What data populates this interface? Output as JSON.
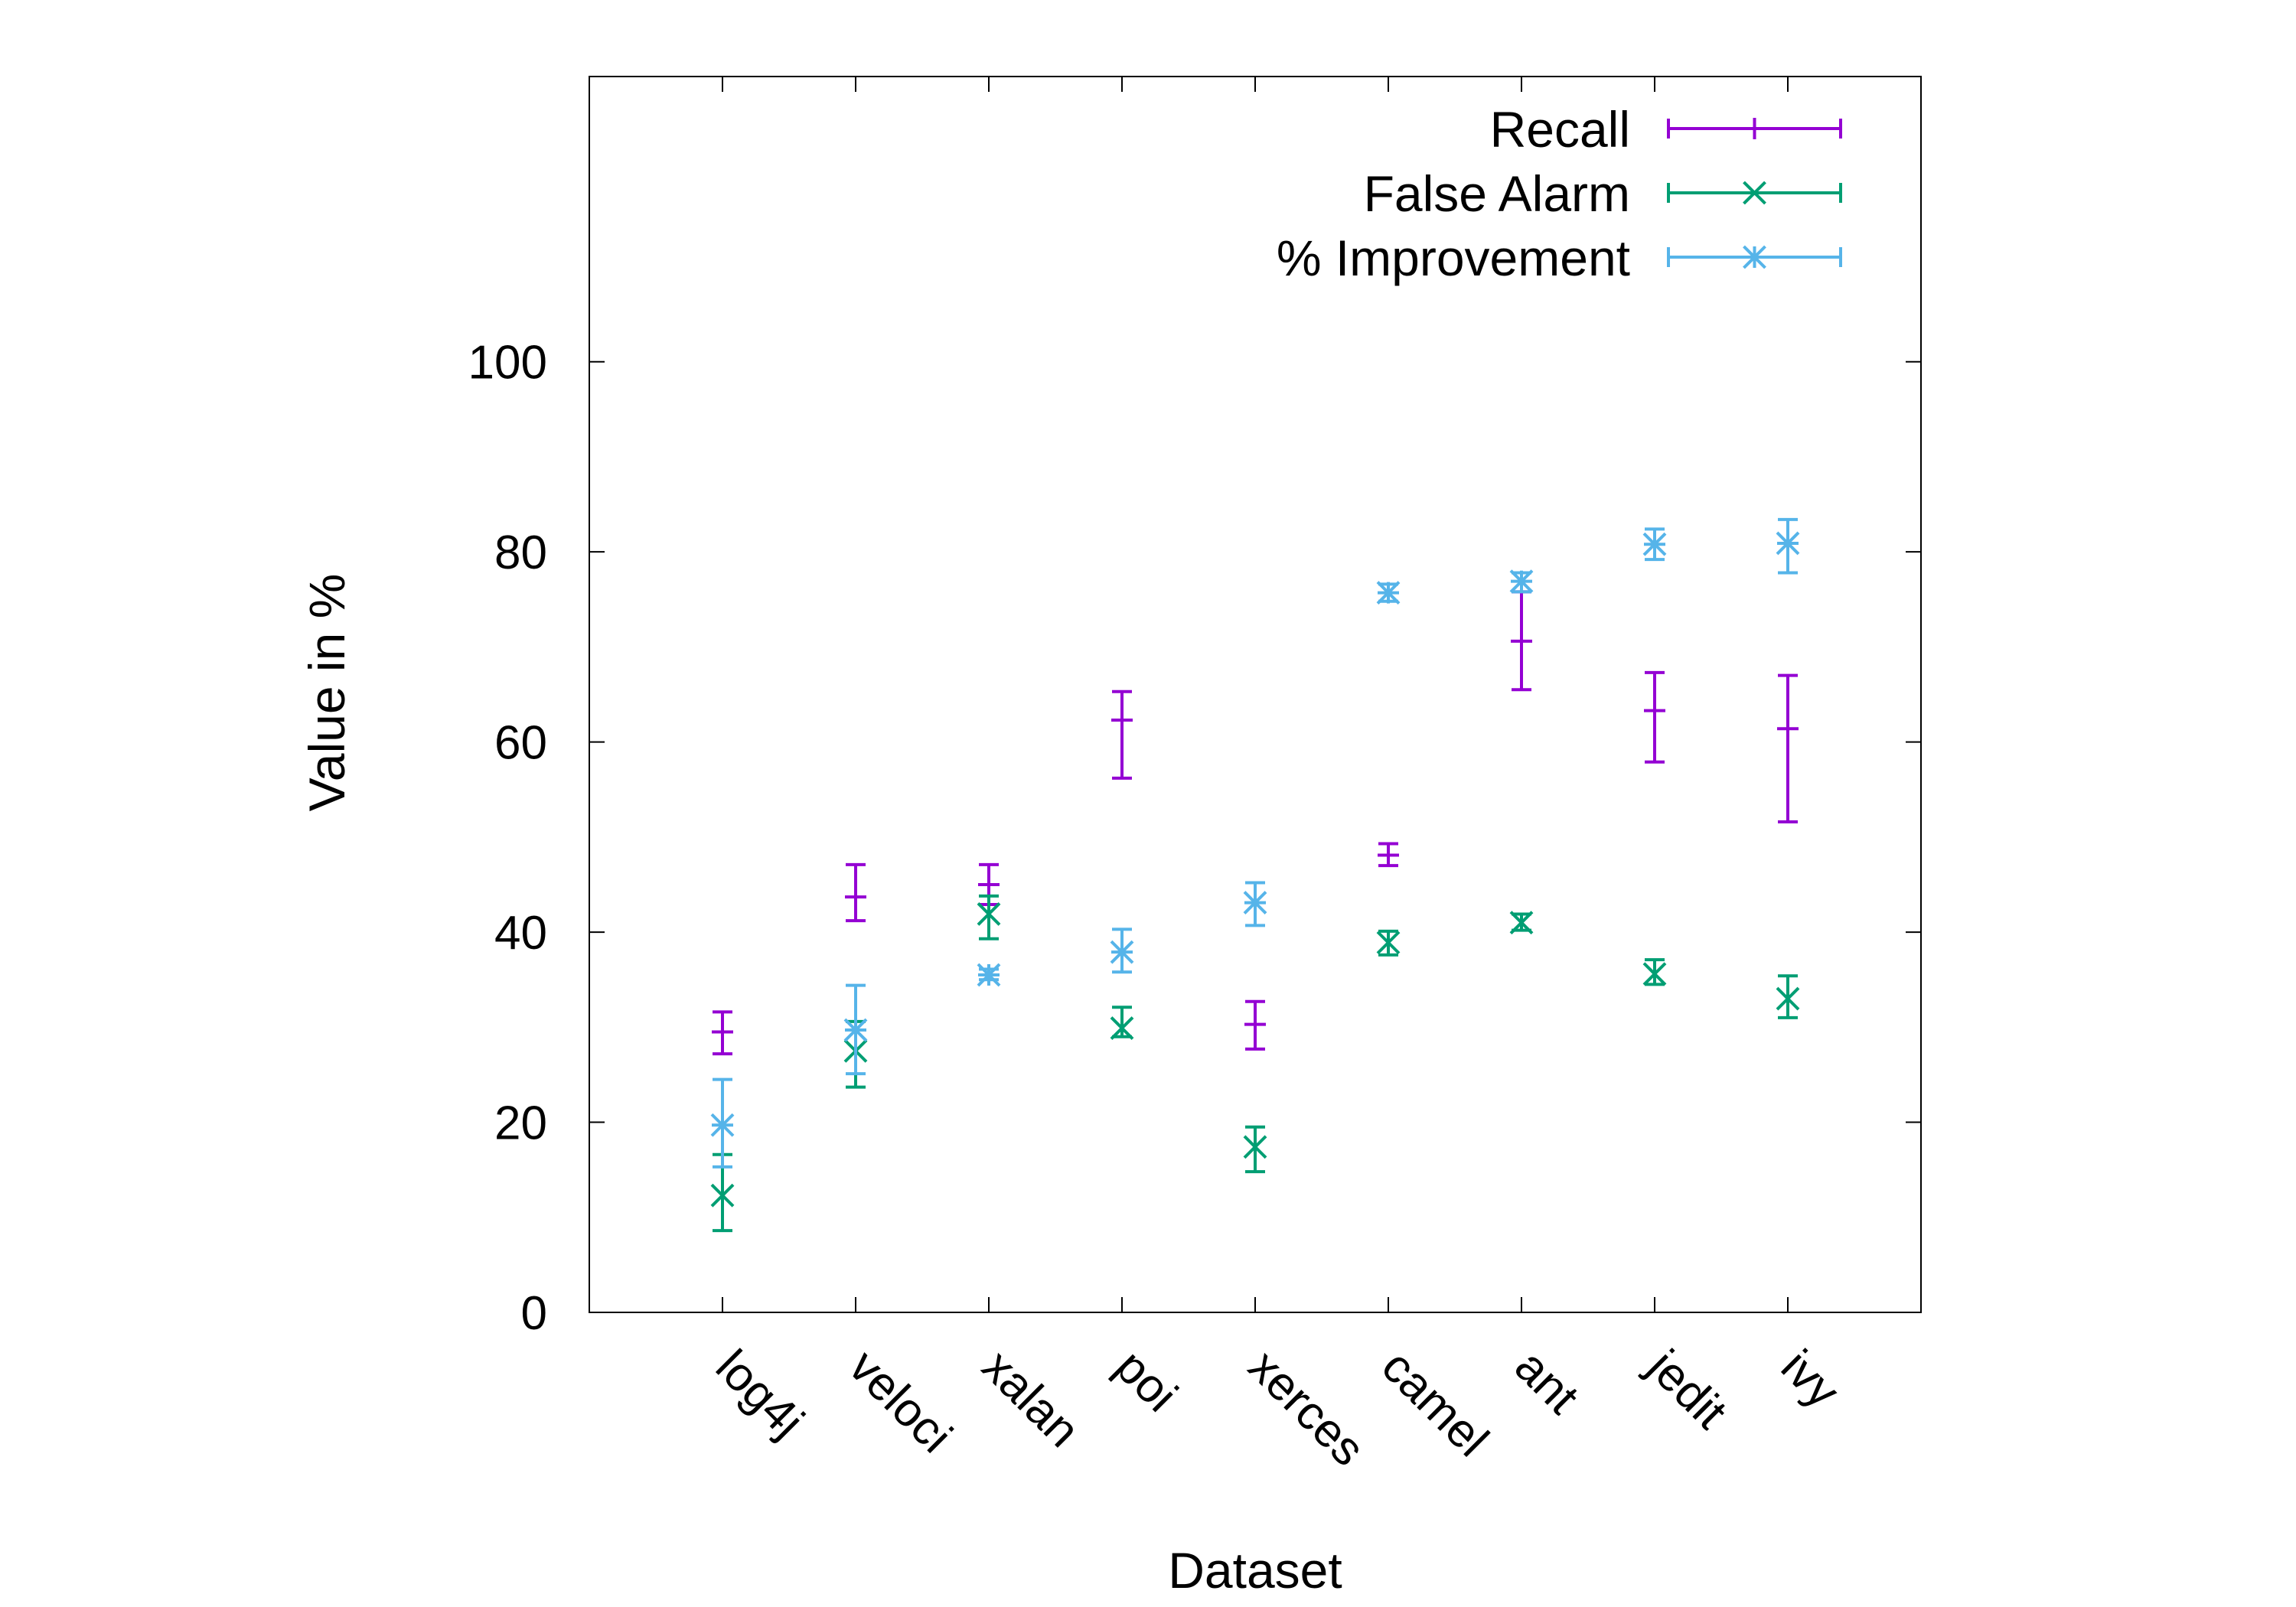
{
  "chart_data": {
    "type": "scatter",
    "xlabel": "Dataset",
    "ylabel": "Value in %",
    "categories": [
      "log4j",
      "veloci",
      "xalan",
      "poi",
      "xerces",
      "camel",
      "ant",
      "jedit",
      "ivy"
    ],
    "ylim": [
      0,
      130
    ],
    "yticks": [
      0,
      20,
      40,
      60,
      80,
      100
    ],
    "legend_position": "top-right",
    "grid": false,
    "series": [
      {
        "name": "Recall",
        "color": "#9400d3",
        "marker": "plus",
        "values": [
          29.5,
          43.7,
          45.0,
          62.3,
          30.3,
          48.1,
          70.6,
          63.3,
          61.4
        ],
        "low": [
          27.2,
          41.2,
          42.9,
          56.2,
          27.7,
          47.0,
          65.5,
          57.9,
          51.6
        ],
        "high": [
          31.6,
          47.1,
          47.1,
          65.3,
          32.7,
          49.3,
          75.8,
          67.3,
          67.0
        ]
      },
      {
        "name": "False Alarm",
        "color": "#009e73",
        "marker": "x",
        "values": [
          12.3,
          27.5,
          41.9,
          29.9,
          17.4,
          38.9,
          41.0,
          35.6,
          33.0
        ],
        "low": [
          8.6,
          23.7,
          39.3,
          29.0,
          14.8,
          37.6,
          40.2,
          34.5,
          31.0
        ],
        "high": [
          16.6,
          30.6,
          43.8,
          32.1,
          19.5,
          40.1,
          41.9,
          37.1,
          35.4
        ]
      },
      {
        "name": "% Improvement",
        "color": "#56b4e9",
        "marker": "star",
        "values": [
          19.7,
          29.7,
          35.5,
          37.9,
          43.1,
          75.7,
          76.9,
          80.8,
          80.9
        ],
        "low": [
          15.3,
          25.1,
          35.0,
          35.8,
          40.7,
          74.8,
          75.8,
          79.2,
          77.8
        ],
        "high": [
          24.5,
          34.4,
          36.1,
          40.3,
          45.2,
          76.6,
          77.8,
          82.4,
          83.4
        ]
      }
    ]
  }
}
